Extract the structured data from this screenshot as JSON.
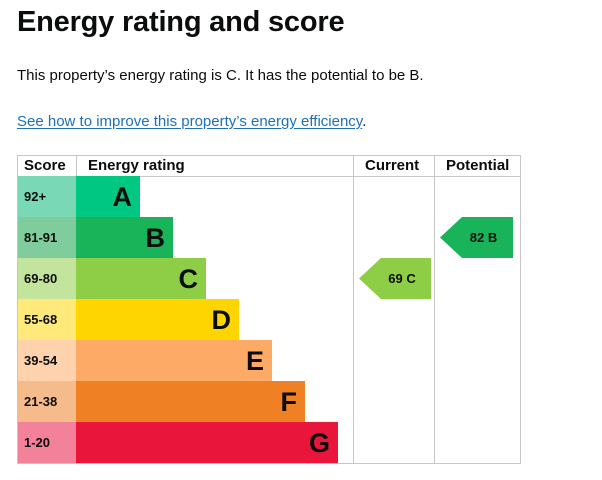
{
  "page": {
    "title": "Energy rating and score",
    "summary": "This property’s energy rating is C. It has the potential to be B.",
    "link_text": "See how to improve this property’s energy efficiency",
    "link_suffix": "."
  },
  "table": {
    "headers": {
      "score": "Score",
      "rating": "Energy rating",
      "current": "Current",
      "potential": "Potential"
    },
    "bands": [
      {
        "score": "92+",
        "letter": "A",
        "color": "#00c781",
        "score_bg": "#79d9b7"
      },
      {
        "score": "81-91",
        "letter": "B",
        "color": "#19b459",
        "score_bg": "#7fcd9c"
      },
      {
        "score": "69-80",
        "letter": "C",
        "color": "#8dce46",
        "score_bg": "#c3e49c"
      },
      {
        "score": "55-68",
        "letter": "D",
        "color": "#ffd500",
        "score_bg": "#ffe97a"
      },
      {
        "score": "39-54",
        "letter": "E",
        "color": "#fcaa65",
        "score_bg": "#fdd2ad"
      },
      {
        "score": "21-38",
        "letter": "F",
        "color": "#ef8023",
        "score_bg": "#f6bb8b"
      },
      {
        "score": "1-20",
        "letter": "G",
        "color": "#e9153b",
        "score_bg": "#f3819a"
      }
    ],
    "current": {
      "label": "69 C",
      "band": "C",
      "color": "#8dce46"
    },
    "potential": {
      "label": "82 B",
      "band": "B",
      "color": "#19b459"
    }
  }
}
